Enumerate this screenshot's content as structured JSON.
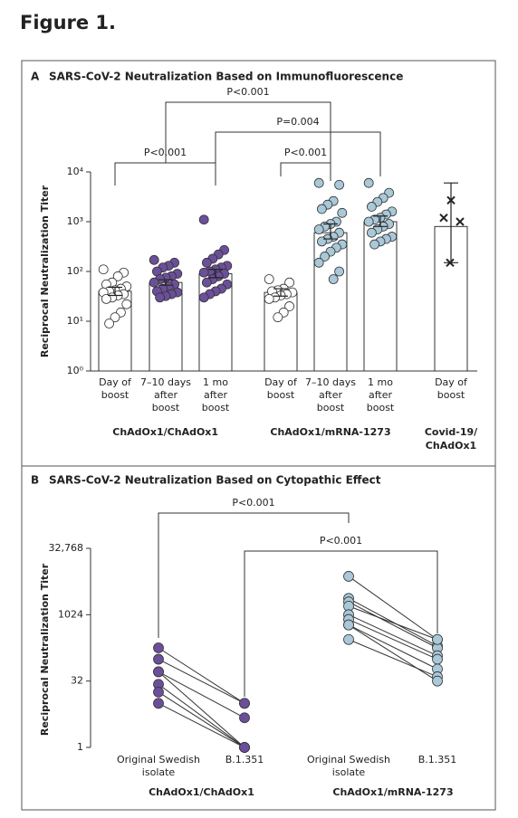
{
  "figure_title": "Figure 1.",
  "chart_data": [
    {
      "type": "bar",
      "panel": "A",
      "title": "SARS-CoV-2 Neutralization Based on Immunofluorescence",
      "y_label": "Reciprocal Neutralization Titer",
      "log_scale": true,
      "ylim": [
        1,
        10000
      ],
      "yticks": [
        {
          "value": 1,
          "label": "10⁰"
        },
        {
          "value": 10,
          "label": "10¹"
        },
        {
          "value": 100,
          "label": "10²"
        },
        {
          "value": 1000,
          "label": "10³"
        },
        {
          "value": 10000,
          "label": "10⁴"
        }
      ],
      "categories": [
        [
          "Day of",
          "boost"
        ],
        [
          "7–10 days",
          "after",
          "boost"
        ],
        [
          "1 mo",
          "after",
          "boost"
        ],
        [
          "Day of",
          "boost"
        ],
        [
          "7–10 days",
          "after",
          "boost"
        ],
        [
          "1 mo",
          "after",
          "boost"
        ],
        [
          "Day of",
          "boost"
        ]
      ],
      "values": [
        40,
        60,
        90,
        38,
        600,
        1000,
        800
      ],
      "error_low": [
        33,
        53,
        75,
        32,
        450,
        800,
        150
      ],
      "error_high": [
        48,
        68,
        110,
        45,
        900,
        1300,
        6000
      ],
      "colors": [
        "#ffffff",
        "#6c4f9a",
        "#6c4f9a",
        "#ffffff",
        "#a9c8d8",
        "#a9c8d8",
        "#222222"
      ],
      "markers": [
        "circle",
        "circle",
        "circle",
        "circle",
        "circle",
        "circle",
        "x"
      ],
      "points": [
        [
          110,
          95,
          80,
          60,
          55,
          50,
          45,
          42,
          40,
          38,
          35,
          33,
          30,
          28,
          22,
          15,
          12,
          9
        ],
        [
          170,
          150,
          130,
          120,
          100,
          90,
          80,
          75,
          70,
          60,
          55,
          50,
          45,
          40,
          38,
          35,
          32,
          30
        ],
        [
          1100,
          270,
          220,
          180,
          150,
          130,
          120,
          110,
          100,
          95,
          90,
          80,
          70,
          60,
          55,
          45,
          40,
          35,
          30
        ],
        [
          70,
          60,
          45,
          42,
          40,
          38,
          35,
          33,
          30,
          28,
          20,
          15,
          12
        ],
        [
          6000,
          5500,
          2600,
          2200,
          1800,
          1500,
          1000,
          900,
          800,
          700,
          600,
          500,
          450,
          400,
          350,
          300,
          250,
          200,
          150,
          100,
          70
        ],
        [
          6000,
          3800,
          3000,
          2500,
          2000,
          1600,
          1400,
          1200,
          1100,
          1000,
          900,
          800,
          700,
          600,
          500,
          450,
          400,
          350
        ],
        [
          2700,
          1200,
          1000,
          150
        ]
      ],
      "groups": [
        {
          "label": [
            "ChAdOx1/ChAdOx1"
          ],
          "categories": [
            0,
            1,
            2
          ]
        },
        {
          "label": [
            "ChAdOx1/mRNA-1273"
          ],
          "categories": [
            3,
            4,
            5
          ]
        },
        {
          "label": [
            "Covid-19/",
            "ChAdOx1"
          ],
          "categories": [
            6
          ]
        }
      ],
      "annotations": [
        {
          "text": "P<0.001",
          "from": 1,
          "to": 4
        },
        {
          "text": "P=0.004",
          "from": 2,
          "to": 5
        },
        {
          "text": "P<0.001",
          "from": 0,
          "to": 2
        },
        {
          "text": "P<0.001",
          "from": 3,
          "to": 4
        }
      ]
    },
    {
      "type": "paired",
      "panel": "B",
      "title": "SARS-CoV-2 Neutralization Based on Cytopathic Effect",
      "y_label": "Reciprocal Neutralization Titer",
      "log_scale": true,
      "ylim": [
        1,
        32768
      ],
      "yticks": [
        1,
        32,
        1024,
        {
          "value": 32768,
          "label": "32,768"
        }
      ],
      "categories": [
        [
          "Original Swedish",
          "isolate"
        ],
        [
          "B.1.351"
        ],
        [
          "Original Swedish",
          "isolate"
        ],
        [
          "B.1.351"
        ]
      ],
      "groups": [
        {
          "label": [
            "ChAdOx1/ChAdOx1"
          ],
          "categories": [
            0,
            1
          ],
          "color": "#6c4f9a",
          "pairs": [
            [
              181,
              10
            ],
            [
              100,
              10
            ],
            [
              52,
              4.7
            ],
            [
              52,
              1
            ],
            [
              27,
              1
            ],
            [
              18,
              1
            ],
            [
              10,
              1
            ]
          ]
        },
        {
          "label": [
            "ChAdOx1/mRNA-1273"
          ],
          "categories": [
            2,
            3
          ],
          "color": "#a9c8d8",
          "pairs": [
            [
              7600,
              280
            ],
            [
              2400,
              200
            ],
            [
              2000,
              180
            ],
            [
              1600,
              280
            ],
            [
              1024,
              120
            ],
            [
              800,
              100
            ],
            [
              600,
              60
            ],
            [
              280,
              40
            ],
            [
              600,
              32
            ]
          ]
        }
      ],
      "annotations": [
        {
          "text": "P<0.001",
          "from": 0,
          "to": 2
        },
        {
          "text": "P<0.001",
          "from": 1,
          "to": 3
        }
      ]
    }
  ]
}
